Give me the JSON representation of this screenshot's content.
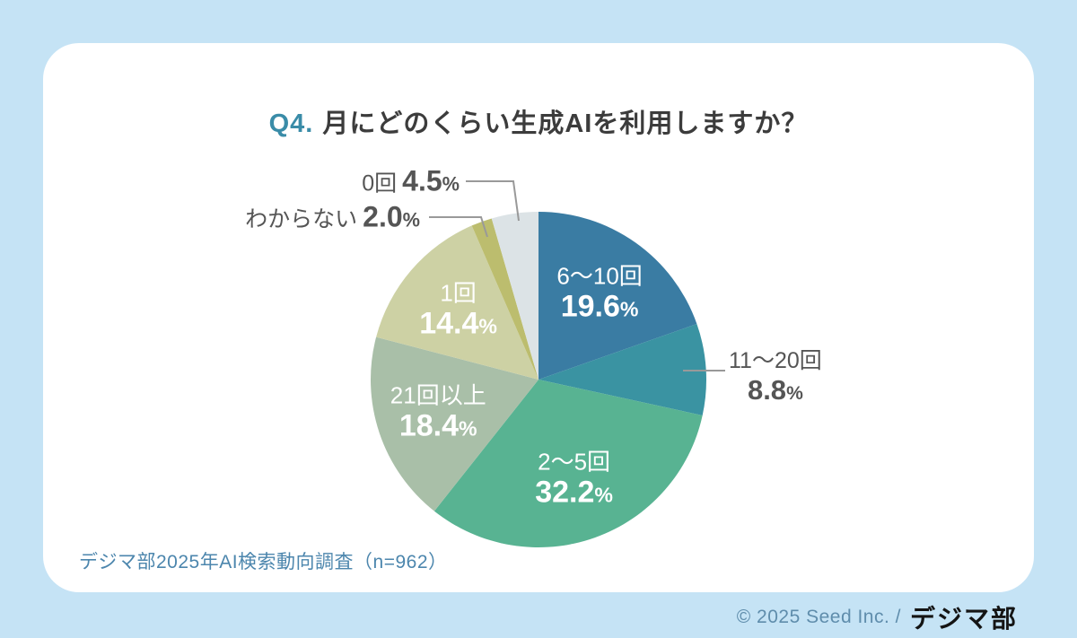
{
  "page": {
    "background_color": "#c5e3f5",
    "card_color": "#ffffff"
  },
  "title": {
    "prefix": "Q4.",
    "prefix_color": "#3a8ca8",
    "text": "月にどのくらい生成AIを利用しますか？"
  },
  "source_note": "デジマ部2025年AI検索動向調査（n=962）",
  "footer": {
    "copyright": "© 2025 Seed Inc. /",
    "brand": "デジマ部"
  },
  "chart_data": {
    "type": "pie",
    "title": "Q4. 月にどのくらい生成AIを利用しますか？",
    "unit": "%",
    "sample_size": "n=962",
    "start_angle": "12-oclock",
    "direction": "clockwise",
    "slices": [
      {
        "label": "6〜10回",
        "value": 19.6,
        "color": "#3a7ca3",
        "label_placement": "inside"
      },
      {
        "label": "11〜20回",
        "value": 8.8,
        "color": "#3a93a2",
        "label_placement": "outside-right"
      },
      {
        "label": "2〜5回",
        "value": 32.2,
        "color": "#58b392",
        "label_placement": "inside"
      },
      {
        "label": "21回以上",
        "value": 18.4,
        "color": "#a9bfa8",
        "label_placement": "inside"
      },
      {
        "label": "1回",
        "value": 14.4,
        "color": "#cdd1a4",
        "label_placement": "inside"
      },
      {
        "label": "わからない",
        "value": 2.0,
        "color": "#bcbd6e",
        "label_placement": "outside-left"
      },
      {
        "label": "0回",
        "value": 4.5,
        "color": "#dce3e6",
        "label_placement": "outside-top"
      }
    ],
    "leader_line_color": "#999999",
    "inside_label_color": "#ffffff",
    "outside_label_color": "#555555"
  }
}
